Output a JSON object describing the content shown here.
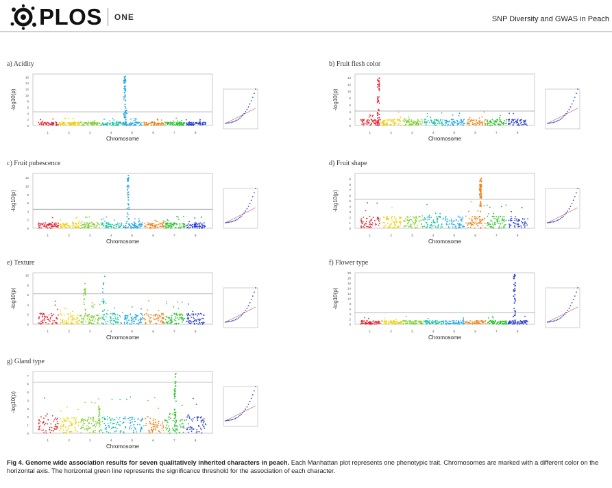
{
  "header": {
    "brand": "PLOS",
    "brand_sub": "ONE",
    "running_title": "SNP Diversity and GWAS in Peach"
  },
  "colors": {
    "chr": [
      "#e8202a",
      "#f0d000",
      "#7fcf2a",
      "#18c3a0",
      "#1ea6e6",
      "#f08218",
      "#27c227",
      "#2a3fd6"
    ],
    "threshold": "#9a9a9a",
    "qq_points": "#3442c4",
    "qq_line": "#c04a4a"
  },
  "axes": {
    "ylabel": "-log10(p)",
    "xlabel": "Chromosome",
    "chromosomes": [
      "1",
      "2",
      "3",
      "4",
      "5",
      "6",
      "7",
      "8"
    ]
  },
  "panels": [
    {
      "id": "a",
      "label": "a) Acidity",
      "yticks": [
        "0",
        "2",
        "4",
        "6",
        "8",
        "10",
        "12",
        "14",
        "16"
      ],
      "ymax": 17,
      "threshold": 4.5,
      "peaks": [
        {
          "chr": 5,
          "pos": 0.1,
          "max": 16.5,
          "n": 45
        },
        {
          "chr": 5,
          "pos": 0.15,
          "max": 5,
          "n": 15
        }
      ],
      "base": 1.1
    },
    {
      "id": "b",
      "label": "b) Fruit flesh color",
      "yticks": [
        "0",
        "2",
        "4",
        "6",
        "8",
        "10",
        "12",
        "14"
      ],
      "ymax": 15,
      "threshold": 4.2,
      "peaks": [
        {
          "chr": 1,
          "pos": 0.85,
          "max": 14,
          "n": 40
        }
      ],
      "base": 1.8
    },
    {
      "id": "c",
      "label": "c) Fruit pubescence",
      "yticks": [
        "0",
        "2",
        "4",
        "6",
        "8",
        "10",
        "12"
      ],
      "ymax": 13,
      "threshold": 4.5,
      "peaks": [
        {
          "chr": 5,
          "pos": 0.25,
          "max": 12.5,
          "n": 35
        }
      ],
      "base": 1.3
    },
    {
      "id": "d",
      "label": "d) Fruit shape",
      "yticks": [
        "0",
        "1",
        "2",
        "3",
        "4",
        "5",
        "6",
        "7",
        "8",
        "9"
      ],
      "ymax": 10,
      "threshold": 5.3,
      "peaks": [
        {
          "chr": 6,
          "pos": 0.7,
          "max": 9.5,
          "n": 60
        }
      ],
      "base": 2.2
    },
    {
      "id": "e",
      "label": "e) Texture",
      "yticks": [
        "0",
        "2",
        "4",
        "6",
        "8",
        "10"
      ],
      "ymax": 10.5,
      "threshold": 6.2,
      "peaks": [
        {
          "chr": 3,
          "pos": 0.2,
          "max": 8.5,
          "n": 18
        },
        {
          "chr": 4,
          "pos": 0.1,
          "max": 10,
          "n": 15
        }
      ],
      "base": 2.2
    },
    {
      "id": "f",
      "label": "f) Flower type",
      "yticks": [
        "0",
        "2",
        "4",
        "6",
        "8",
        "10",
        "12",
        "14",
        "16",
        "18",
        "20"
      ],
      "ymax": 20,
      "threshold": 4.5,
      "peaks": [
        {
          "chr": 8,
          "pos": 0.3,
          "max": 19.5,
          "n": 35
        }
      ],
      "base": 1.4
    },
    {
      "id": "g",
      "label": "g) Gland type",
      "yticks": [
        "0",
        "1",
        "2",
        "3",
        "4",
        "5",
        "6",
        "7"
      ],
      "ymax": 7.5,
      "threshold": 6.2,
      "peaks": [
        {
          "chr": 7,
          "pos": 0.5,
          "max": 7.5,
          "n": 40
        },
        {
          "chr": 3,
          "pos": 0.9,
          "max": 3.5,
          "n": 20
        }
      ],
      "base": 2.0
    }
  ],
  "caption": {
    "bold": "Fig 4. Genome wide association results for seven qualitatively inherited characters in peach.",
    "text": " Each Manhattan plot represents one phenotypic trait. Chromosomes are marked with a different color on the horizontal axis. The horizontal green line represents the significance threshold for the association of each character."
  }
}
